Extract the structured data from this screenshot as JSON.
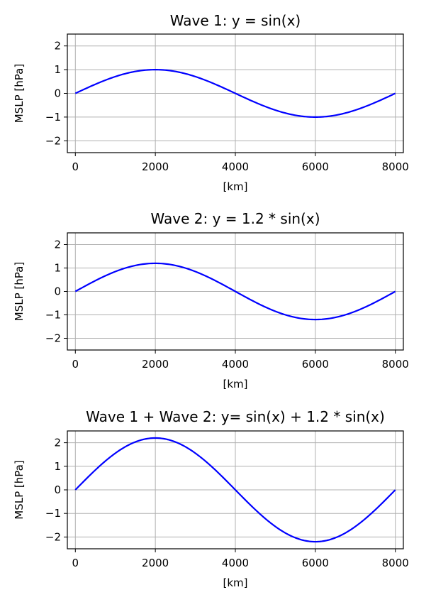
{
  "chart_data": [
    {
      "type": "line",
      "title": "Wave 1: y = sin(x)",
      "xlabel": "[km]",
      "ylabel": "MSLP [hPa]",
      "xlim": [
        -200,
        8200
      ],
      "ylim": [
        -2.5,
        2.5
      ],
      "xticks": [
        0,
        2000,
        4000,
        6000,
        8000
      ],
      "yticks": [
        -2,
        -1,
        0,
        1,
        2
      ],
      "grid": true,
      "series": [
        {
          "color": "#0000ff",
          "function": "sin",
          "amplitude": 1.0,
          "period_km": 8000,
          "x_range": [
            0,
            8000
          ]
        }
      ]
    },
    {
      "type": "line",
      "title": "Wave 2: y = 1.2 * sin(x)",
      "xlabel": "[km]",
      "ylabel": "MSLP [hPa]",
      "xlim": [
        -200,
        8200
      ],
      "ylim": [
        -2.5,
        2.5
      ],
      "xticks": [
        0,
        2000,
        4000,
        6000,
        8000
      ],
      "yticks": [
        -2,
        -1,
        0,
        1,
        2
      ],
      "grid": true,
      "series": [
        {
          "color": "#0000ff",
          "function": "sin",
          "amplitude": 1.2,
          "period_km": 8000,
          "x_range": [
            0,
            8000
          ]
        }
      ]
    },
    {
      "type": "line",
      "title": "Wave 1 + Wave 2: y= sin(x) + 1.2 * sin(x)",
      "xlabel": "[km]",
      "ylabel": "MSLP [hPa]",
      "xlim": [
        -200,
        8200
      ],
      "ylim": [
        -2.5,
        2.5
      ],
      "xticks": [
        0,
        2000,
        4000,
        6000,
        8000
      ],
      "yticks": [
        -2,
        -1,
        0,
        1,
        2
      ],
      "grid": true,
      "series": [
        {
          "color": "#0000ff",
          "function": "sin",
          "amplitude": 2.2,
          "period_km": 8000,
          "x_range": [
            0,
            8000
          ]
        }
      ]
    }
  ]
}
